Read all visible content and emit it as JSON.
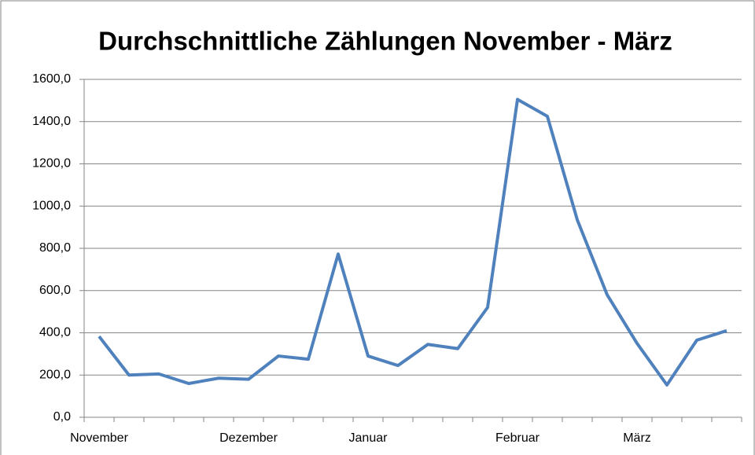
{
  "chart_data": {
    "type": "line",
    "title": "Durchschnittliche Zählungen November - März",
    "categories": [
      "November",
      null,
      null,
      null,
      null,
      "Dezember",
      null,
      null,
      null,
      "Januar",
      null,
      null,
      null,
      null,
      "Februar",
      null,
      null,
      null,
      "März",
      null,
      null,
      null
    ],
    "series": [
      {
        "color": "#4f81bd",
        "values": [
          383,
          200,
          205,
          160,
          185,
          180,
          290,
          275,
          773,
          290,
          245,
          345,
          325,
          520,
          1505,
          1425,
          935,
          580,
          350,
          153,
          365,
          410
        ]
      }
    ],
    "ylim": [
      0,
      1600
    ],
    "yticks": [
      {
        "value": 0,
        "label": "0,0"
      },
      {
        "value": 200,
        "label": "200,0"
      },
      {
        "value": 400,
        "label": "400,0"
      },
      {
        "value": 600,
        "label": "600,0"
      },
      {
        "value": 800,
        "label": "800,0"
      },
      {
        "value": 1000,
        "label": "1000,0"
      },
      {
        "value": 1200,
        "label": "1200,0"
      },
      {
        "value": 1400,
        "label": "1400,0"
      },
      {
        "value": 1600,
        "label": "1600,0"
      }
    ],
    "grid": true
  }
}
